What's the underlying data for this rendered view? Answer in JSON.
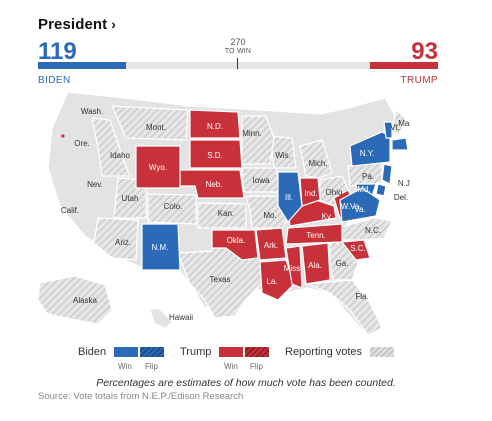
{
  "header": {
    "title": "President",
    "chevron": "›"
  },
  "tally": {
    "biden_votes": "119",
    "trump_votes": "93",
    "biden_label": "BIDEN",
    "trump_label": "TRUMP",
    "threshold_value": "270",
    "threshold_label": "TO WIN",
    "biden_share": 0.22,
    "trump_share": 0.17
  },
  "colors": {
    "biden": "#2b6ab6",
    "trump": "#c8313a",
    "uncalled": "#e3e3e3",
    "reporting": "#cfcfcf"
  },
  "state_labels": {
    "wash": "Wash.",
    "ore": "Ore.",
    "idaho": "Idaho",
    "mont": "Mont.",
    "wyo": "Wyo.",
    "nev": "Nev.",
    "calif": "Calif.",
    "utah": "Utah",
    "ariz": "Ariz.",
    "colo": "Colo.",
    "nm": "N.M.",
    "nd": "N.D.",
    "sd": "S.D.",
    "neb": "Neb.",
    "kan": "Kan.",
    "okla": "Okla.",
    "texas": "Texas",
    "minn": "Minn.",
    "iowa": "Iowa",
    "mo": "Mo.",
    "ark": "Ark.",
    "la": "La.",
    "wis": "Wis.",
    "ill": "Ill.",
    "mich": "Mich.",
    "ind": "Ind.",
    "ohio": "Ohio",
    "ky": "Ky.",
    "tenn": "Tenn.",
    "miss": "Miss.",
    "ala": "Ala.",
    "ga": "Ga.",
    "fla": "Fla.",
    "sc": "S.C.",
    "nc": "N.C.",
    "va": "Va.",
    "wva": "W.Va.",
    "pa": "Pa.",
    "ny": "N.Y.",
    "vt": "Vt.",
    "maine": "Maine",
    "mass": "Mass.",
    "nj": "N.J.",
    "del": "Del.",
    "md": "Md.",
    "alaska": "Alaska",
    "hawaii": "Hawaii"
  },
  "states": {
    "biden_won": [
      "N.M.",
      "Ill.",
      "N.Y.",
      "Vt.",
      "Mass.",
      "N.J.",
      "Del.",
      "Md.",
      "Va."
    ],
    "trump_won": [
      "N.D.",
      "S.D.",
      "Wyo.",
      "Neb.",
      "Okla.",
      "Ark.",
      "La.",
      "Miss.",
      "Ala.",
      "Tenn.",
      "Ky.",
      "Ind.",
      "W.Va.",
      "S.C."
    ],
    "reporting": [
      "Texas",
      "Ga.",
      "Fla.",
      "N.C.",
      "Ohio",
      "Mich.",
      "Wis.",
      "Mo.",
      "Kan.",
      "Pa.",
      "Colo.",
      "Idaho",
      "Utah",
      "Ariz.",
      "Mont.",
      "Iowa",
      "Minn.",
      "Maine",
      "Hawaii",
      "Alaska"
    ]
  },
  "legend": {
    "biden": "Biden",
    "trump": "Trump",
    "win": "Win",
    "flip": "Flip",
    "reporting": "Reporting votes"
  },
  "note": "Percentages are estimates of how much vote has been counted.",
  "source": "Source: Vote totals from N.E.P./Edison Research"
}
